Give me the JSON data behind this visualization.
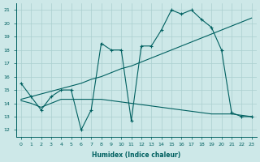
{
  "title": "",
  "xlabel": "Humidex (Indice chaleur)",
  "ylabel": "",
  "background_color": "#cde8e8",
  "grid_color": "#aacfcf",
  "line_color": "#006060",
  "xlim": [
    -0.5,
    23.5
  ],
  "ylim": [
    11.5,
    21.5
  ],
  "xticks": [
    0,
    1,
    2,
    3,
    4,
    5,
    6,
    7,
    8,
    9,
    10,
    11,
    12,
    13,
    14,
    15,
    16,
    17,
    18,
    19,
    20,
    21,
    22,
    23
  ],
  "yticks": [
    12,
    13,
    14,
    15,
    16,
    17,
    18,
    19,
    20,
    21
  ],
  "series": [
    {
      "x": [
        0,
        1,
        2,
        3,
        4,
        5,
        6,
        7,
        8,
        9,
        10,
        11,
        12,
        13,
        14,
        15,
        16,
        17,
        18,
        19,
        20,
        21,
        22,
        23
      ],
      "y": [
        15.5,
        14.5,
        13.5,
        14.5,
        15.0,
        15.0,
        12.0,
        13.5,
        18.5,
        18.0,
        18.0,
        12.7,
        18.3,
        18.3,
        19.5,
        21.0,
        20.7,
        21.0,
        20.3,
        19.7,
        18.0,
        13.3,
        13.0,
        13.0
      ],
      "marker": true
    },
    {
      "x": [
        0,
        1,
        2,
        3,
        4,
        5,
        6,
        7,
        8,
        9,
        10,
        11,
        12,
        13,
        14,
        15,
        16,
        17,
        18,
        19,
        20,
        21,
        22,
        23
      ],
      "y": [
        14.2,
        14.0,
        13.7,
        14.0,
        14.3,
        14.3,
        14.3,
        14.3,
        14.3,
        14.2,
        14.1,
        14.0,
        13.9,
        13.8,
        13.7,
        13.6,
        13.5,
        13.4,
        13.3,
        13.2,
        13.2,
        13.2,
        13.1,
        13.0
      ],
      "marker": false
    },
    {
      "x": [
        0,
        1,
        2,
        3,
        4,
        5,
        6,
        7,
        8,
        9,
        10,
        11,
        12,
        13,
        14,
        15,
        16,
        17,
        18,
        19,
        20,
        21,
        22,
        23
      ],
      "y": [
        14.3,
        14.5,
        14.7,
        14.9,
        15.1,
        15.3,
        15.5,
        15.8,
        16.0,
        16.3,
        16.6,
        16.8,
        17.1,
        17.4,
        17.7,
        18.0,
        18.3,
        18.6,
        18.9,
        19.2,
        19.5,
        19.8,
        20.1,
        20.4
      ],
      "marker": false
    }
  ]
}
